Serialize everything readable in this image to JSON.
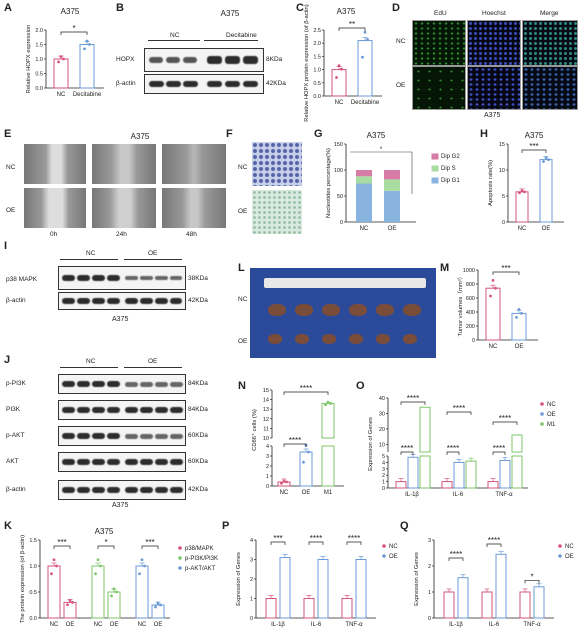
{
  "panels": {
    "A": {
      "letter": "A",
      "title": "A375",
      "ylabel": "Relative HOPX expression",
      "xticks": [
        "NC",
        "Decitabine"
      ],
      "sig": "*",
      "yticks": [
        "0.0",
        "0.5",
        "1.0",
        "1.5",
        "2.0"
      ]
    },
    "B": {
      "letter": "B",
      "title": "A375",
      "groups": [
        "NC",
        "Decitabine"
      ],
      "rows": [
        "HOPX",
        "β-actin"
      ],
      "sizes": [
        "8KDa",
        "42KDa"
      ]
    },
    "C": {
      "letter": "C",
      "title": "A375",
      "ylabel": "Relative HOPX protein expression (of β-actin)",
      "xticks": [
        "NC",
        "Decitabine"
      ],
      "sig": "**",
      "yticks": [
        "0.0",
        "0.5",
        "1.0",
        "1.5",
        "2.0",
        "2.5"
      ]
    },
    "D": {
      "letter": "D",
      "cols": [
        "EdU",
        "Hoechst",
        "Merge"
      ],
      "rows": [
        "NC",
        "OE"
      ],
      "caption": "A375"
    },
    "E": {
      "letter": "E",
      "title": "A375",
      "rows": [
        "NC",
        "OE"
      ],
      "cols": [
        "0h",
        "24h",
        "48h"
      ]
    },
    "F": {
      "letter": "F",
      "rows": [
        "NC",
        "OE"
      ]
    },
    "G": {
      "letter": "G",
      "title": "A375",
      "ylabel": "Nucleotides percentage(%)",
      "xticks": [
        "NC",
        "OE"
      ],
      "legend": [
        "Dip G2",
        "Dip S",
        "Dip G1"
      ],
      "sig": "*",
      "yticks": [
        "0",
        "50",
        "100",
        "150"
      ]
    },
    "H": {
      "letter": "H",
      "title": "A375",
      "ylabel": "Apoptosis rate(%)",
      "xticks": [
        "NC",
        "OE"
      ],
      "sig": "***",
      "yticks": [
        "0",
        "5",
        "10",
        "15"
      ]
    },
    "I": {
      "letter": "I",
      "groups": [
        "NC",
        "OE"
      ],
      "rows": [
        "p38 MAPK",
        "β-actin"
      ],
      "sizes": [
        "38KDa",
        "42KDa"
      ],
      "caption": "A375"
    },
    "J": {
      "letter": "J",
      "groups": [
        "NC",
        "OE"
      ],
      "rows": [
        "p-PI3K",
        "PI3K",
        "p-AKT",
        "AKT",
        "β-actin"
      ],
      "sizes": [
        "84KDa",
        "84KDa",
        "60KDa",
        "60KDa",
        "42KDa"
      ],
      "caption": "A375"
    },
    "K": {
      "letter": "K",
      "title": "A375",
      "ylabel": "The protein expression (of β-actin)",
      "xticks": [
        "NC",
        "OE",
        "NC",
        "OE",
        "NC",
        "OE"
      ],
      "legend": [
        "p38/MAPK",
        "p-PI3K/PI3K",
        "p-AKT/AKT"
      ],
      "sig": [
        "***",
        "*",
        "***"
      ],
      "yticks": [
        "0.0",
        "0.5",
        "1.0",
        "1.5"
      ]
    },
    "L": {
      "letter": "L",
      "rows": [
        "NC",
        "OE"
      ]
    },
    "M": {
      "letter": "M",
      "ylabel": "Tumor volumes（mm³）",
      "xticks": [
        "NC",
        "OE"
      ],
      "sig": "***",
      "yticks": [
        "0",
        "200",
        "400",
        "600",
        "800",
        "1000"
      ]
    },
    "N": {
      "letter": "N",
      "ylabel": "CD86⁺ cells (%)",
      "xticks": [
        "NC",
        "OE",
        "M1"
      ],
      "sig": [
        "****",
        "****"
      ],
      "yticks": [
        "0",
        "1",
        "2",
        "3",
        "4",
        "10",
        "11",
        "12",
        "13",
        "14",
        "15"
      ]
    },
    "O": {
      "letter": "O",
      "ylabel": "Expression of Genes",
      "xticks": [
        "IL-1β",
        "IL-6",
        "TNF-α"
      ],
      "legend": [
        "NC",
        "OE",
        "M1"
      ],
      "sig": "****",
      "yticks": [
        "0",
        "1",
        "2",
        "3",
        "4",
        "5",
        "10",
        "20",
        "30",
        "40"
      ]
    },
    "P": {
      "letter": "P",
      "ylabel": "Expression of Genes",
      "xticks": [
        "IL-1β",
        "IL-6",
        "TNF-α"
      ],
      "legend": [
        "NC",
        "OE"
      ],
      "sig": [
        "***",
        "****",
        "****"
      ],
      "yticks": [
        "0",
        "1",
        "2",
        "3",
        "4"
      ]
    },
    "Q": {
      "letter": "Q",
      "ylabel": "Expression of Genes",
      "xticks": [
        "IL-1β",
        "IL-6",
        "TNF-α"
      ],
      "legend": [
        "NC",
        "OE"
      ],
      "sig": [
        "****",
        "****",
        "*"
      ],
      "yticks": [
        "0",
        "1",
        "2",
        "3"
      ]
    }
  },
  "colors": {
    "nc": "#d6547c",
    "oe": "#6b9bd6",
    "m1": "#7cc66a",
    "g2": "#d67aa6",
    "s": "#a8dca0",
    "g1": "#8ab4e0"
  },
  "chart_data": [
    {
      "panel": "A",
      "type": "bar",
      "categories": [
        "NC",
        "Decitabine"
      ],
      "values": [
        1.0,
        1.5
      ],
      "ylim": [
        0,
        2.0
      ],
      "title": "A375",
      "ylabel": "Relative HOPX expression"
    },
    {
      "panel": "C",
      "type": "bar",
      "categories": [
        "NC",
        "Decitabine"
      ],
      "values": [
        1.0,
        2.1
      ],
      "ylim": [
        0,
        2.5
      ],
      "title": "A375",
      "ylabel": "Relative HOPX protein expression (of β-actin)"
    },
    {
      "panel": "G",
      "type": "bar",
      "categories": [
        "NC",
        "OE"
      ],
      "series": [
        {
          "name": "Dip G1",
          "values": [
            74,
            60
          ]
        },
        {
          "name": "Dip S",
          "values": [
            14,
            22
          ]
        },
        {
          "name": "Dip G2",
          "values": [
            12,
            18
          ]
        }
      ],
      "ylim": [
        0,
        150
      ],
      "title": "A375",
      "ylabel": "Nucleotides percentage(%)"
    },
    {
      "panel": "H",
      "type": "bar",
      "categories": [
        "NC",
        "OE"
      ],
      "values": [
        5.8,
        12.0
      ],
      "ylim": [
        0,
        15
      ],
      "title": "A375",
      "ylabel": "Apoptosis rate(%)"
    },
    {
      "panel": "K",
      "type": "bar",
      "categories": [
        "p38/MAPK",
        "p-PI3K/PI3K",
        "p-AKT/AKT"
      ],
      "series": [
        {
          "name": "NC",
          "values": [
            1.0,
            1.0,
            1.0
          ]
        },
        {
          "name": "OE",
          "values": [
            0.3,
            0.5,
            0.25
          ]
        }
      ],
      "ylim": [
        0,
        1.5
      ],
      "title": "A375",
      "ylabel": "The protein expression (of β-actin)"
    },
    {
      "panel": "M",
      "type": "bar",
      "categories": [
        "NC",
        "OE"
      ],
      "values": [
        740,
        380
      ],
      "ylim": [
        0,
        1000
      ],
      "ylabel": "Tumor volumes（mm³）"
    },
    {
      "panel": "N",
      "type": "bar",
      "categories": [
        "NC",
        "OE",
        "M1"
      ],
      "values": [
        0.4,
        3.4,
        13.6
      ],
      "ylabel": "CD86⁺ cells (%)"
    },
    {
      "panel": "O",
      "type": "bar",
      "categories": [
        "IL-1β",
        "IL-6",
        "TNF-α"
      ],
      "series": [
        {
          "name": "NC",
          "values": [
            1.0,
            1.0,
            1.0
          ]
        },
        {
          "name": "OE",
          "values": [
            4.8,
            4.0,
            4.3
          ]
        },
        {
          "name": "M1",
          "values": [
            34,
            4.2,
            16
          ]
        }
      ],
      "ylabel": "Expression of Genes"
    },
    {
      "panel": "P",
      "type": "bar",
      "categories": [
        "IL-1β",
        "IL-6",
        "TNF-α"
      ],
      "series": [
        {
          "name": "NC",
          "values": [
            1.0,
            1.0,
            1.0
          ]
        },
        {
          "name": "OE",
          "values": [
            3.1,
            3.0,
            3.0
          ]
        }
      ],
      "ylim": [
        0,
        4
      ],
      "ylabel": "Expression of Genes"
    },
    {
      "panel": "Q",
      "type": "bar",
      "categories": [
        "IL-1β",
        "IL-6",
        "TNF-α"
      ],
      "series": [
        {
          "name": "NC",
          "values": [
            1.0,
            1.0,
            1.0
          ]
        },
        {
          "name": "OE",
          "values": [
            1.55,
            2.45,
            1.2
          ]
        }
      ],
      "ylim": [
        0,
        3
      ],
      "ylabel": "Expression of Genes"
    }
  ]
}
